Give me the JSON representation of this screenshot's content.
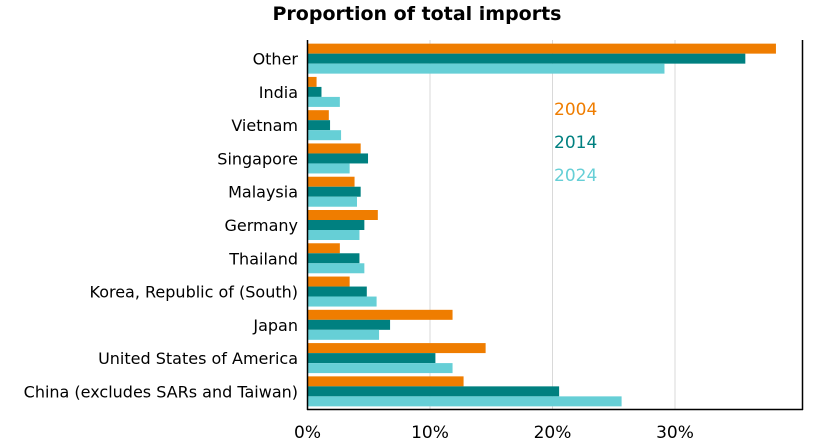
{
  "chart_data": {
    "type": "bar",
    "orientation": "horizontal",
    "title": "Proportion of total imports",
    "xlabel": "",
    "ylabel": "",
    "xlim": [
      0,
      40
    ],
    "x_ticks": [
      0,
      10,
      20,
      30
    ],
    "x_tick_labels": [
      "0%",
      "10%",
      "20%",
      "30%"
    ],
    "grid": true,
    "legend_position": "inside-right",
    "categories": [
      "Other",
      "India",
      "Vietnam",
      "Singapore",
      "Malaysia",
      "Germany",
      "Thailand",
      "Korea, Republic of (South)",
      "Japan",
      "United States of America",
      "China (excludes SARs and Taiwan)"
    ],
    "series": [
      {
        "name": "2004",
        "color": "#ef7d00",
        "values": [
          38.2,
          0.7,
          1.7,
          4.3,
          3.8,
          5.7,
          2.6,
          3.4,
          11.8,
          14.5,
          12.7
        ]
      },
      {
        "name": "2014",
        "color": "#008080",
        "values": [
          35.7,
          1.1,
          1.8,
          4.9,
          4.3,
          4.6,
          4.2,
          4.8,
          6.7,
          10.4,
          20.5
        ]
      },
      {
        "name": "2024",
        "color": "#66cfd6",
        "values": [
          29.1,
          2.6,
          2.7,
          3.4,
          4.0,
          4.2,
          4.6,
          5.6,
          5.8,
          11.8,
          25.6
        ]
      }
    ]
  }
}
